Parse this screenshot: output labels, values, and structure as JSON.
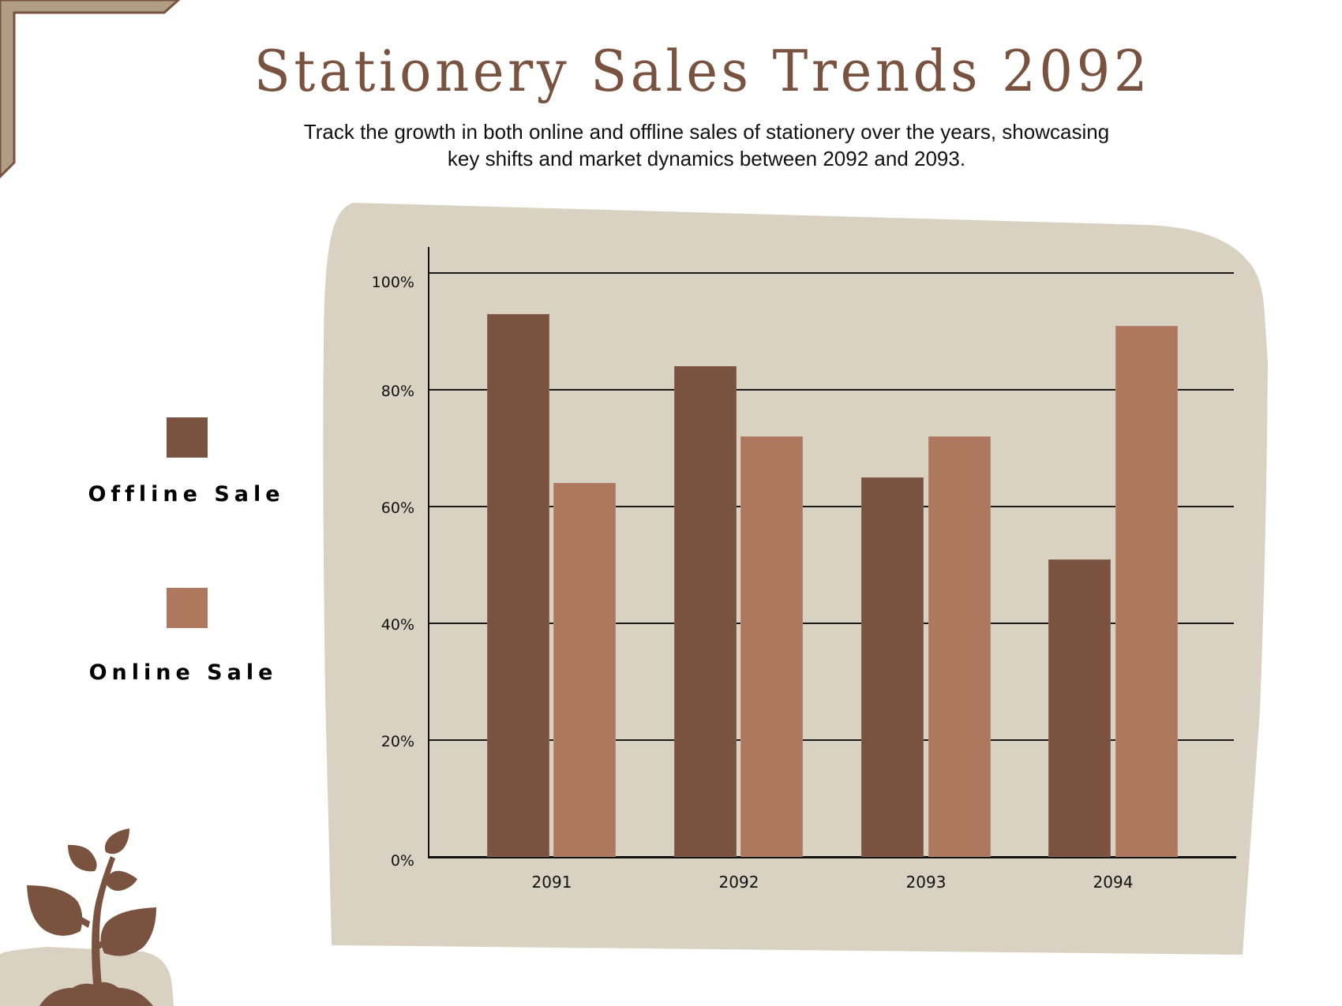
{
  "header": {
    "title": "Stationery Sales Trends 2092",
    "subtitle_line1": "Track the growth in both online and offline sales of stationery over the years, showcasing",
    "subtitle_line2": "key shifts and market dynamics between 2092 and 2093."
  },
  "legend": {
    "items": [
      {
        "label": "Offline Sale",
        "color": "#7a5240"
      },
      {
        "label": "Online Sale",
        "color": "#ad785e"
      }
    ]
  },
  "colors": {
    "title": "#7a5240",
    "panel": "#d9d1c2",
    "offline": "#7a5240",
    "online": "#ad785e",
    "corner_fill": "#b09d82",
    "corner_stroke": "#7a5240",
    "plant": "#7a5240"
  },
  "axis": {
    "y_ticks": [
      "0%",
      "20%",
      "40%",
      "60%",
      "80%",
      "100%"
    ],
    "x_ticks": [
      "2091",
      "2092",
      "2093",
      "2094"
    ]
  },
  "chart_data": {
    "type": "bar",
    "title": "Stationery Sales Trends 2092",
    "subtitle": "Track the growth in both online and offline sales of stationery over the years, showcasing key shifts and market dynamics between 2092 and 2093.",
    "categories": [
      "2091",
      "2092",
      "2093",
      "2094"
    ],
    "series": [
      {
        "name": "Offline Sale",
        "values": [
          93,
          84,
          65,
          51
        ],
        "color": "#7a5240"
      },
      {
        "name": "Online Sale",
        "values": [
          64,
          72,
          72,
          91
        ],
        "color": "#ad785e"
      }
    ],
    "xlabel": "",
    "ylabel": "",
    "ylim": [
      0,
      100
    ],
    "y_tick_format": "percent",
    "y_ticks": [
      0,
      20,
      40,
      60,
      80,
      100
    ],
    "grid": true,
    "legend_position": "left"
  }
}
